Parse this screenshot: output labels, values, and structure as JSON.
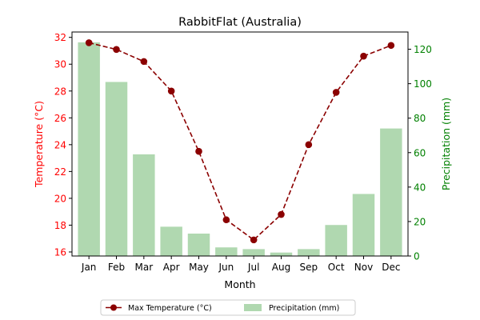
{
  "chart_data": {
    "type": "bar+line",
    "title": "RabbitFlat (Australia)",
    "xlabel": "Month",
    "categories": [
      "Jan",
      "Feb",
      "Mar",
      "Apr",
      "May",
      "Jun",
      "Jul",
      "Aug",
      "Sep",
      "Oct",
      "Nov",
      "Dec"
    ],
    "temperature": {
      "name": "Max Temperature (°C)",
      "axis_label": "Temperature (°C)",
      "values": [
        31.6,
        31.1,
        30.2,
        28.0,
        23.5,
        18.4,
        16.9,
        18.8,
        24.0,
        27.9,
        30.6,
        31.4
      ],
      "ylim": [
        15.7,
        32.4
      ],
      "ticks": [
        16,
        18,
        20,
        22,
        24,
        26,
        28,
        30,
        32
      ],
      "color": "#8b0000",
      "axis_color": "#ff0000"
    },
    "precipitation": {
      "name": "Precipitation (mm)",
      "axis_label": "Precipitation (mm)",
      "values": [
        124,
        101,
        59,
        17,
        13,
        5,
        4,
        2,
        4,
        18,
        36,
        74
      ],
      "ylim": [
        0,
        130
      ],
      "ticks": [
        0,
        20,
        40,
        60,
        80,
        100,
        120
      ],
      "color": "#b0d8b0",
      "axis_color": "#008000"
    },
    "legend_position": "bottom-center",
    "grid": false
  }
}
